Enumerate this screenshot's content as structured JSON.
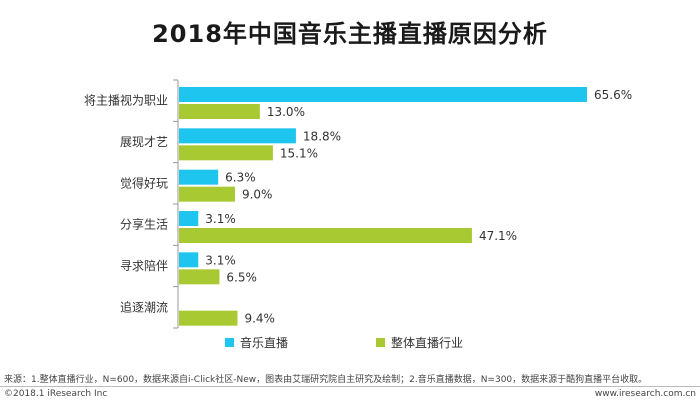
{
  "chart_data": {
    "type": "bar",
    "orientation": "horizontal",
    "title": "2018年中国音乐主播直播原因分析",
    "categories": [
      "将主播视为职业",
      "展现才艺",
      "觉得好玩",
      "分享生活",
      "寻求陪伴",
      "追逐潮流"
    ],
    "series": [
      {
        "name": "音乐直播",
        "color": "#1dc5ef",
        "values": [
          65.6,
          18.8,
          6.3,
          3.1,
          3.1,
          null
        ],
        "labels": [
          "65.6%",
          "18.8%",
          "6.3%",
          "3.1%",
          "3.1%",
          ""
        ]
      },
      {
        "name": "整体直播行业",
        "color": "#a9c933",
        "values": [
          13.0,
          15.1,
          9.0,
          47.1,
          6.5,
          9.4
        ],
        "labels": [
          "13.0%",
          "15.1%",
          "9.0%",
          "47.1%",
          "6.5%",
          "9.4%"
        ]
      }
    ],
    "value_unit": "%",
    "xlim": [
      0,
      65.6
    ],
    "grid": false,
    "legend_position": "bottom"
  },
  "footer": {
    "note": "来源：1.整体直播行业，N=600，数据来源自i-Click社区-New，图表由艾瑞研究院自主研究及绘制；2.音乐直播数据，N=300，数据来源于酷狗直播平台收取。",
    "copyright": "©2018.1 iResearch Inc",
    "website": "www.iresearch.com.cn"
  }
}
